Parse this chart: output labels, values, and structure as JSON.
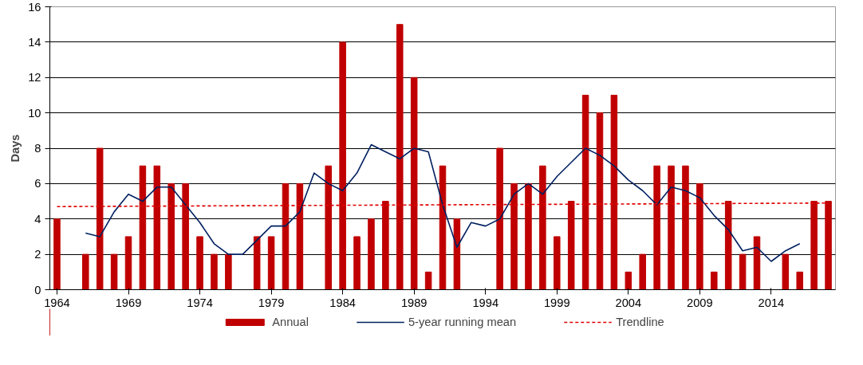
{
  "chart_data": {
    "type": "bar",
    "ylabel": "Days",
    "x": [
      1964,
      1965,
      1966,
      1967,
      1968,
      1969,
      1970,
      1971,
      1972,
      1973,
      1974,
      1975,
      1976,
      1977,
      1978,
      1979,
      1980,
      1981,
      1982,
      1983,
      1984,
      1985,
      1986,
      1987,
      1988,
      1989,
      1990,
      1991,
      1992,
      1993,
      1994,
      1995,
      1996,
      1997,
      1998,
      1999,
      2000,
      2001,
      2002,
      2003,
      2004,
      2005,
      2006,
      2007,
      2008,
      2009,
      2010,
      2011,
      2012,
      2013,
      2014,
      2015,
      2016,
      2017,
      2018
    ],
    "series": [
      {
        "name": "Annual",
        "color": "#c00000",
        "values": [
          4,
          0,
          2,
          8,
          2,
          3,
          7,
          7,
          6,
          6,
          3,
          2,
          2,
          0,
          3,
          3,
          6,
          6,
          0,
          7,
          14,
          3,
          4,
          5,
          15,
          12,
          1,
          7,
          4,
          0,
          0,
          8,
          6,
          6,
          7,
          3,
          5,
          11,
          10,
          11,
          1,
          2,
          7,
          7,
          7,
          6,
          1,
          5,
          2,
          3,
          0,
          2,
          1,
          5,
          5
        ]
      },
      {
        "name": "5-year running mean",
        "type": "line",
        "color": "#002060",
        "line_style": "solid",
        "x": [
          1966,
          1967,
          1968,
          1969,
          1970,
          1971,
          1972,
          1973,
          1974,
          1975,
          1976,
          1977,
          1978,
          1979,
          1980,
          1981,
          1982,
          1983,
          1984,
          1985,
          1986,
          1987,
          1988,
          1989,
          1990,
          1991,
          1992,
          1993,
          1994,
          1995,
          1996,
          1997,
          1998,
          1999,
          2000,
          2001,
          2002,
          2003,
          2004,
          2005,
          2006,
          2007,
          2008,
          2009,
          2010,
          2011,
          2012,
          2013,
          2014,
          2015,
          2016
        ],
        "values": [
          3.2,
          3.0,
          4.4,
          5.4,
          5.0,
          5.8,
          5.8,
          4.8,
          3.8,
          2.6,
          2.0,
          2.0,
          2.8,
          3.6,
          3.6,
          4.4,
          6.6,
          6.0,
          5.6,
          6.6,
          8.2,
          7.8,
          7.4,
          8.0,
          7.8,
          4.8,
          2.4,
          3.8,
          3.6,
          4.0,
          5.4,
          6.0,
          5.4,
          6.4,
          7.2,
          8.0,
          7.6,
          7.0,
          6.2,
          5.6,
          4.8,
          5.8,
          5.6,
          5.2,
          4.2,
          3.4,
          2.2,
          2.4,
          1.6,
          2.2,
          2.6
        ]
      },
      {
        "name": "Trendline",
        "type": "line",
        "color": "#e00000",
        "line_style": "dashed",
        "x": [
          1964,
          2018
        ],
        "values": [
          4.7,
          4.9
        ]
      }
    ],
    "xlim": [
      1963.5,
      2018.5
    ],
    "xticks": [
      1964,
      1969,
      1974,
      1979,
      1984,
      1989,
      1994,
      1999,
      2004,
      2009,
      2014
    ],
    "ylim": [
      0,
      16
    ],
    "yticks": [
      0,
      2,
      4,
      6,
      8,
      10,
      12,
      14,
      16
    ],
    "grid": "y",
    "legend": "bottom"
  }
}
